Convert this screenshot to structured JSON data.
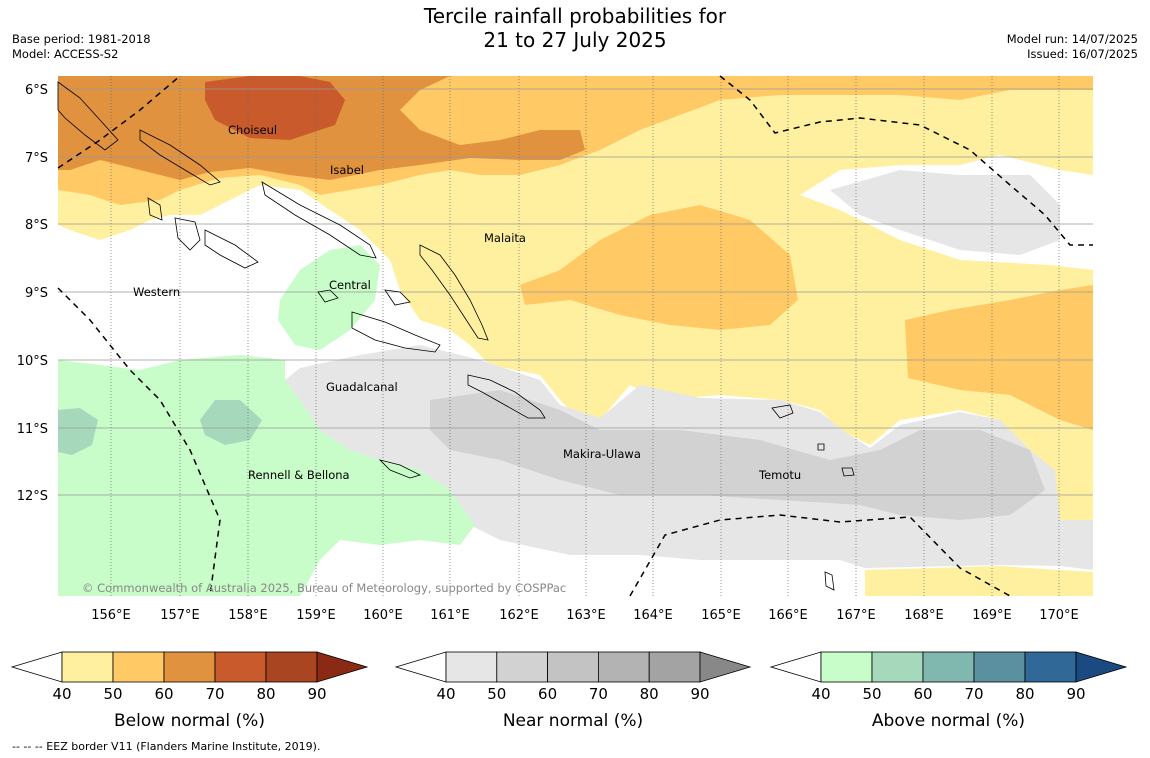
{
  "title_line1": "Tercile rainfall probabilities for",
  "title_line2": "21 to 27 July 2025",
  "base_period": "Base period: 1981-2018",
  "model": "Model: ACCESS-S2",
  "model_run": "Model run: 14/07/2025",
  "issued": "Issued: 16/07/2025",
  "copyright": "© Commonwealth of Australia 2025, Bureau of Meteorology, supported by COSPPac",
  "lat_labels": [
    "6°S",
    "7°S",
    "8°S",
    "9°S",
    "10°S",
    "11°S",
    "12°S"
  ],
  "lon_labels": [
    "156°E",
    "157°E",
    "158°E",
    "159°E",
    "160°E",
    "161°E",
    "162°E",
    "163°E",
    "164°E",
    "165°E",
    "166°E",
    "167°E",
    "168°E",
    "169°E",
    "170°E"
  ],
  "regions": [
    "Choiseul",
    "Isabel",
    "Malaita",
    "Western",
    "Central",
    "Guadalcanal",
    "Makira-Ulawa",
    "Temotu",
    "Rennell & Bellona"
  ],
  "colorbars": [
    {
      "label": "Below normal (%)",
      "ticks": [
        "40",
        "50",
        "60",
        "70",
        "80",
        "90"
      ],
      "colors": [
        "#fff0a0",
        "#ffca66",
        "#e0923f",
        "#c95a2c",
        "#aa4522",
        "#8b2a14"
      ]
    },
    {
      "label": "Near normal (%)",
      "ticks": [
        "40",
        "50",
        "60",
        "70",
        "80",
        "90"
      ],
      "colors": [
        "#e6e6e6",
        "#d2d2d2",
        "#c3c3c3",
        "#b3b3b3",
        "#a3a3a3",
        "#888888"
      ]
    },
    {
      "label": "Above normal (%)",
      "ticks": [
        "40",
        "50",
        "60",
        "70",
        "80",
        "90"
      ],
      "colors": [
        "#c8fcc8",
        "#a6d9bc",
        "#80b8b0",
        "#5a90a0",
        "#306898",
        "#1a4a80"
      ]
    }
  ],
  "footnote": "--  --  -- EEZ border V11 (Flanders Marine Institute, 2019)."
}
